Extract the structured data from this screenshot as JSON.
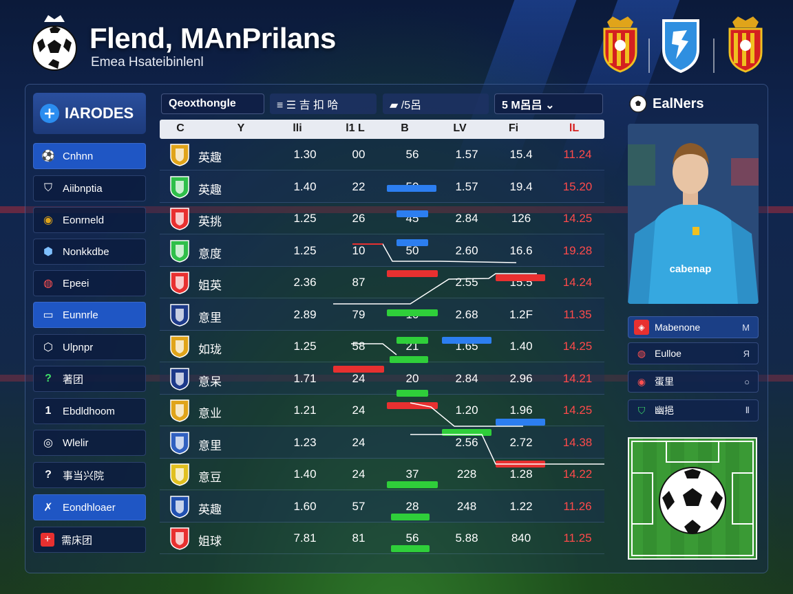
{
  "header": {
    "title": "Flend, MAnPrilans",
    "subtitle": "Emea Hsateibinlenl"
  },
  "nav": {
    "heading": "IARODES",
    "items": [
      {
        "label": "Cnhnn",
        "icon": "ball-icon",
        "active": true
      },
      {
        "label": "Aiibnptia",
        "icon": "shield-icon",
        "active": false
      },
      {
        "label": "Eonrneld",
        "icon": "badge-icon",
        "active": false
      },
      {
        "label": "Nonkkdbe",
        "icon": "shield-icon",
        "active": false
      },
      {
        "label": "Epeei",
        "icon": "shield-icon",
        "active": false
      },
      {
        "label": "Eunnrle",
        "icon": "card-icon",
        "active": true
      },
      {
        "label": "Ulpnpr",
        "icon": "shield-icon",
        "active": false
      },
      {
        "label": "著团",
        "icon": "question-icon",
        "active": false
      },
      {
        "label": "Ebdldhoom",
        "icon": "one-icon",
        "active": false
      },
      {
        "label": "Wlelir",
        "icon": "ring-icon",
        "active": false
      },
      {
        "label": "事当兴院",
        "icon": "question-icon",
        "active": false
      },
      {
        "label": "Eondhloaer",
        "icon": "runner-icon",
        "active": true
      },
      {
        "label": "需床团",
        "icon": "cross-icon",
        "active": false
      }
    ]
  },
  "filters": {
    "primary": "Qeoxthongle",
    "f2": "≡ ☰ 吉 扣 哈",
    "f3": "▰ /5呂",
    "f4": "5 M呂吕 ⌄"
  },
  "table": {
    "columns": [
      "C",
      "Y",
      "lli",
      "l1 L",
      "B",
      "LV",
      "Fi",
      "lL"
    ],
    "rows": [
      {
        "team": "英趣",
        "c1": "1.30",
        "c2": "00",
        "c3": "56",
        "c4": "1.57",
        "c5": "15.4",
        "c6": "11.24"
      },
      {
        "team": "英趣",
        "c1": "1.40",
        "c2": "22",
        "c3": "50",
        "c4": "1.57",
        "c5": "19.4",
        "c6": "15.20"
      },
      {
        "team": "英挑",
        "c1": "1.25",
        "c2": "26",
        "c3": "45",
        "c4": "2.84",
        "c5": "126",
        "c6": "14.25"
      },
      {
        "team": "意度",
        "c1": "1.25",
        "c2": "10",
        "c3": "50",
        "c4": "2.60",
        "c5": "16.6",
        "c6": "19.28"
      },
      {
        "team": "姐英",
        "c1": "2.36",
        "c2": "87",
        "c3": "",
        "c4": "2.55",
        "c5": "15.5",
        "c6": "14.24"
      },
      {
        "team": "意里",
        "c1": "2.89",
        "c2": "79",
        "c3": "10",
        "c4": "2.68",
        "c5": "1.2F",
        "c6": "11.35"
      },
      {
        "team": "如珑",
        "c1": "1.25",
        "c2": "58",
        "c3": "21",
        "c4": "1.65",
        "c5": "1.40",
        "c6": "14.25"
      },
      {
        "team": "意呆",
        "c1": "1.71",
        "c2": "24",
        "c3": "20",
        "c4": "2.84",
        "c5": "2.96",
        "c6": "14.21"
      },
      {
        "team": "意业",
        "c1": "1.21",
        "c2": "24",
        "c3": "",
        "c4": "1.20",
        "c5": "1.96",
        "c6": "14.25"
      },
      {
        "team": "意里",
        "c1": "1.23",
        "c2": "24",
        "c3": "",
        "c4": "2.56",
        "c5": "2.72",
        "c6": "14.38"
      },
      {
        "team": "意豆",
        "c1": "1.40",
        "c2": "24",
        "c3": "37",
        "c4": "228",
        "c5": "1.28",
        "c6": "14.22"
      },
      {
        "team": "英趣",
        "c1": "1.60",
        "c2": "57",
        "c3": "28",
        "c4": "248",
        "c5": "1.22",
        "c6": "11.26"
      },
      {
        "team": "姐球",
        "c1": "7.81",
        "c2": "81",
        "c3": "56",
        "c4": "5.88",
        "c5": "840",
        "c6": "11.25"
      }
    ]
  },
  "right": {
    "title": "EalNers",
    "sponsor": "cabenap",
    "list": [
      {
        "label": "Mabenone",
        "tail": "M"
      },
      {
        "label": "Eulloe",
        "tail": "Я"
      },
      {
        "label": "蛋里",
        "tail": "○"
      },
      {
        "label": "幽挹",
        "tail": "Ⅱ"
      }
    ]
  },
  "colors": {
    "accent_blue": "#1f56c4",
    "accent_red": "#ff4a4a",
    "bar_green": "#2fcf3a"
  }
}
